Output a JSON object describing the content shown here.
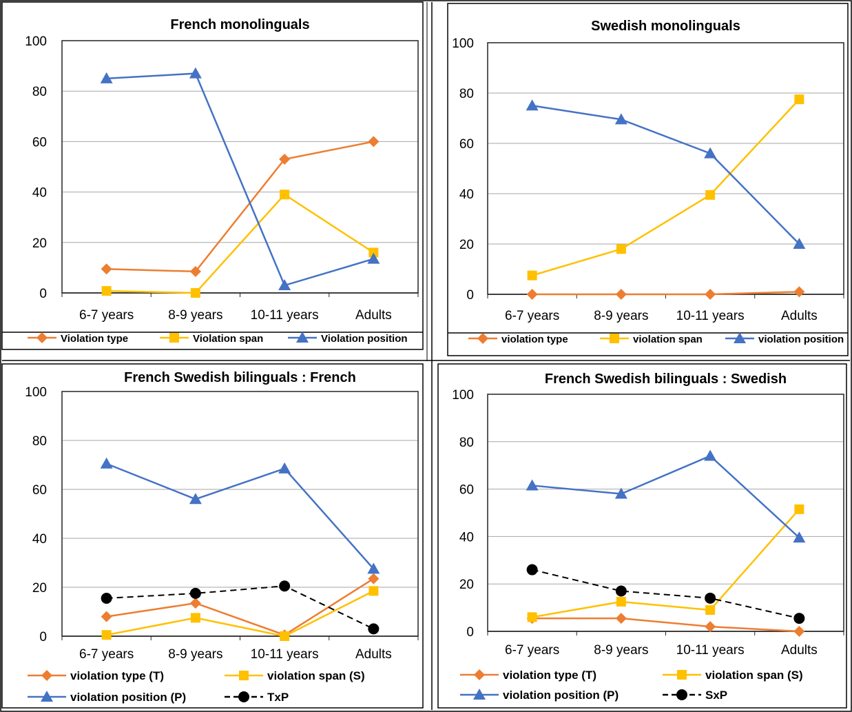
{
  "colors": {
    "type": "#ED7D31",
    "span": "#FFC000",
    "position": "#4472C4",
    "interaction": "#000000",
    "grid": "#A6A6A6",
    "frame": "#000000"
  },
  "chart_data": [
    {
      "type": "line",
      "title": "French monolinguals",
      "categories": [
        "6-7 years",
        "8-9 years",
        "10-11 years",
        "Adults"
      ],
      "ylim": [
        0,
        100
      ],
      "yticks": [
        0,
        20,
        40,
        60,
        80,
        100
      ],
      "grid": true,
      "legend_placement": "bottom",
      "series": [
        {
          "name": "Violation type",
          "key": "type",
          "marker": "diamond",
          "values": [
            9.5,
            8.5,
            53,
            60
          ]
        },
        {
          "name": "Violation span",
          "key": "span",
          "marker": "square",
          "values": [
            0.8,
            0,
            39,
            16
          ]
        },
        {
          "name": "Violation position",
          "key": "position",
          "marker": "triangle",
          "values": [
            85,
            87,
            3,
            13.5
          ]
        }
      ]
    },
    {
      "type": "line",
      "title": "Swedish monolinguals",
      "categories": [
        "6-7 years",
        "8-9 years",
        "10-11 years",
        "Adults"
      ],
      "ylim": [
        0,
        100
      ],
      "yticks": [
        0,
        20,
        40,
        60,
        80,
        100
      ],
      "grid": true,
      "legend_placement": "bottom",
      "series": [
        {
          "name": "violation type",
          "key": "type",
          "marker": "diamond",
          "values": [
            0,
            0,
            0,
            1
          ]
        },
        {
          "name": "violation span",
          "key": "span",
          "marker": "square",
          "values": [
            7.5,
            18,
            39.5,
            77.5
          ]
        },
        {
          "name": "violation position",
          "key": "position",
          "marker": "triangle",
          "values": [
            75,
            69.5,
            56,
            20
          ]
        }
      ]
    },
    {
      "type": "line",
      "title": "French Swedish bilinguals : French",
      "categories": [
        "6-7 years",
        "8-9 years",
        "10-11 years",
        "Adults"
      ],
      "ylim": [
        0,
        100
      ],
      "yticks": [
        0,
        20,
        40,
        60,
        80,
        100
      ],
      "grid": true,
      "legend_placement": "bottom",
      "series": [
        {
          "name": "violation type (T)",
          "key": "type",
          "marker": "diamond",
          "values": [
            8,
            13.5,
            0.5,
            23.5
          ]
        },
        {
          "name": "violation span (S)",
          "key": "span",
          "marker": "square",
          "values": [
            0.5,
            7.5,
            0,
            18.5
          ]
        },
        {
          "name": "violation position (P)",
          "key": "position",
          "marker": "triangle",
          "values": [
            70.5,
            56,
            68.5,
            27.5
          ]
        },
        {
          "name": "TxP",
          "key": "interaction",
          "marker": "circle",
          "dashed": true,
          "values": [
            15.5,
            17.5,
            20.5,
            3
          ]
        }
      ]
    },
    {
      "type": "line",
      "title": "French Swedish bilinguals : Swedish",
      "categories": [
        "6-7 years",
        "8-9 years",
        "10-11 years",
        "Adults"
      ],
      "ylim": [
        0,
        100
      ],
      "yticks": [
        0,
        20,
        40,
        60,
        80,
        100
      ],
      "grid": true,
      "legend_placement": "bottom",
      "series": [
        {
          "name": "violation type (T)",
          "key": "type",
          "marker": "diamond",
          "values": [
            5.5,
            5.5,
            2,
            0
          ]
        },
        {
          "name": "violation span (S)",
          "key": "span",
          "marker": "square",
          "values": [
            6,
            12.5,
            9,
            51.5
          ]
        },
        {
          "name": "violation position (P)",
          "key": "position",
          "marker": "triangle",
          "values": [
            61.5,
            58,
            74,
            39.5
          ]
        },
        {
          "name": "SxP",
          "key": "interaction",
          "marker": "circle",
          "dashed": true,
          "values": [
            26,
            17,
            14,
            5.5
          ]
        }
      ]
    }
  ]
}
